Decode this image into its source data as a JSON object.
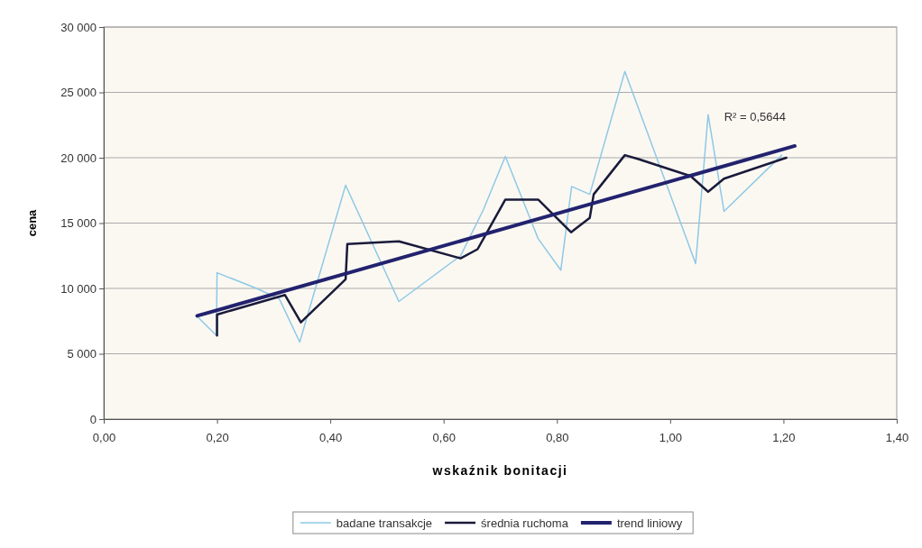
{
  "chart_data": {
    "type": "line",
    "xlabel": "wskaźnik bonitacji",
    "ylabel": "cena",
    "xlim": [
      0,
      1.4
    ],
    "xticks": [
      {
        "value": 0,
        "label": "0,00"
      },
      {
        "value": 0.2,
        "label": "0,20"
      },
      {
        "value": 0.4,
        "label": "0,40"
      },
      {
        "value": 0.6,
        "label": "0,60"
      },
      {
        "value": 0.8,
        "label": "0,80"
      },
      {
        "value": 1,
        "label": "1,00"
      },
      {
        "value": 1.2,
        "label": "1,20"
      },
      {
        "value": 1.4,
        "label": "1,40"
      }
    ],
    "ylim": [
      0,
      30000
    ],
    "yticks": [
      0,
      {
        "value": 5000,
        "label": "5 000"
      },
      {
        "value": 10000,
        "label": "10 000"
      },
      {
        "value": 15000,
        "label": "15 000"
      },
      {
        "value": 20000,
        "label": "20 000"
      },
      {
        "value": 25000,
        "label": "25 000"
      },
      {
        "value": 30000,
        "label": "30 000"
      }
    ],
    "grid": "y",
    "legend": "bottom",
    "line_style": "solid",
    "series": [
      {
        "name": "badane transakcje",
        "color": "#8ec9e6",
        "x": [
          0.164,
          0.199,
          0.2,
          0.27,
          0.31,
          0.346,
          0.427,
          0.521,
          0.63,
          0.67,
          0.709,
          0.767,
          0.807,
          0.826,
          0.858,
          0.92,
          1.045,
          1.067,
          1.095,
          1.197
        ],
        "values": [
          7900,
          6400,
          11200,
          10000,
          9200,
          5900,
          17900,
          9000,
          12500,
          16000,
          20100,
          13800,
          11400,
          17800,
          17200,
          26600,
          11900,
          23300,
          15900,
          20200
        ]
      },
      {
        "name": "średnia ruchoma",
        "color": "#1a1a3a",
        "x": [
          0.2,
          0.2,
          0.32,
          0.348,
          0.427,
          0.43,
          0.521,
          0.63,
          0.66,
          0.709,
          0.767,
          0.825,
          0.858,
          0.865,
          0.92,
          0.944,
          1.036,
          1.067,
          1.095,
          1.205
        ],
        "values": [
          6400,
          8000,
          9500,
          7400,
          10700,
          13400,
          13600,
          12300,
          13000,
          16800,
          16800,
          14300,
          15400,
          17200,
          20200,
          19900,
          18600,
          17400,
          18400,
          20000
        ]
      },
      {
        "name": "trend liniowy",
        "color": "#22226e",
        "x": [
          0.165,
          1.22
        ],
        "values": [
          7900,
          20900
        ]
      }
    ],
    "annotations": [
      {
        "text": "R² = 0,5644",
        "x": 1.22,
        "y": 20900
      }
    ]
  }
}
